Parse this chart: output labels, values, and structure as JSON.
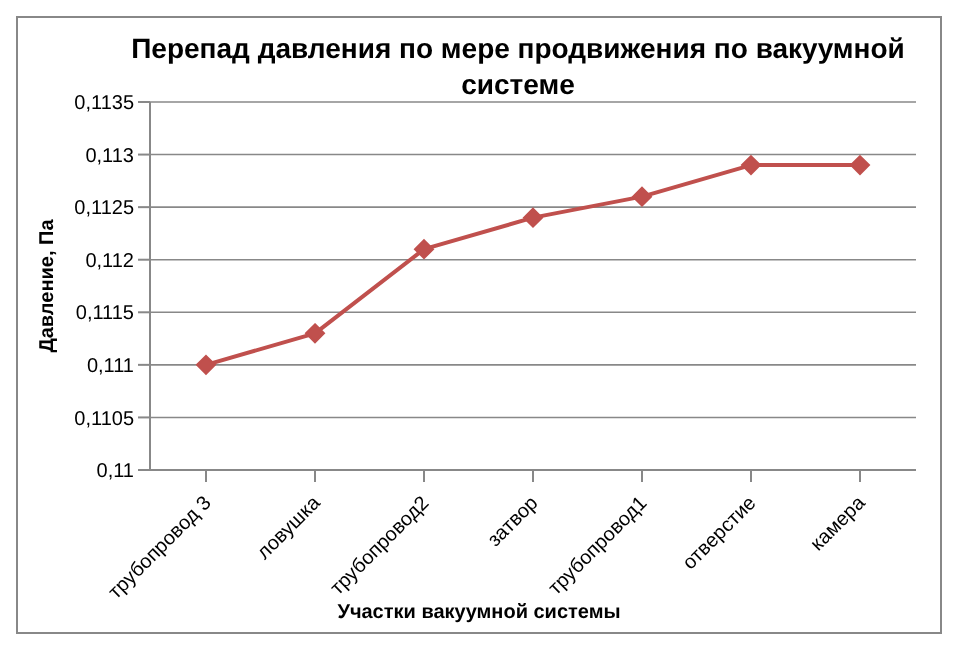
{
  "chart_data": {
    "type": "line",
    "title": "Перепад давления по мере продвижения по вакуумной системе",
    "xlabel": "Участки вакуумной системы",
    "ylabel": "Давление, Па",
    "categories": [
      "трубопровод 3",
      "ловушка",
      "трубопровод2",
      "затвор",
      "трубопровод1",
      "отверстие",
      "камера"
    ],
    "series": [
      {
        "color": "#c0504d",
        "values": [
          0.111,
          0.1113,
          0.1121,
          0.1124,
          0.1126,
          0.1129,
          0.1129
        ]
      }
    ],
    "ylim": [
      0.11,
      0.1135
    ],
    "yticks": [
      {
        "value": 0.11,
        "label": "0,11"
      },
      {
        "value": 0.1105,
        "label": "0,1105"
      },
      {
        "value": 0.111,
        "label": "0,111"
      },
      {
        "value": 0.1115,
        "label": "0,1115"
      },
      {
        "value": 0.112,
        "label": "0,112"
      },
      {
        "value": 0.1125,
        "label": "0,1125"
      },
      {
        "value": 0.113,
        "label": "0,113"
      },
      {
        "value": 0.1135,
        "label": "0,1135"
      }
    ],
    "grid": "y",
    "legend": false,
    "marker": "diamond",
    "line_style": "solid"
  }
}
